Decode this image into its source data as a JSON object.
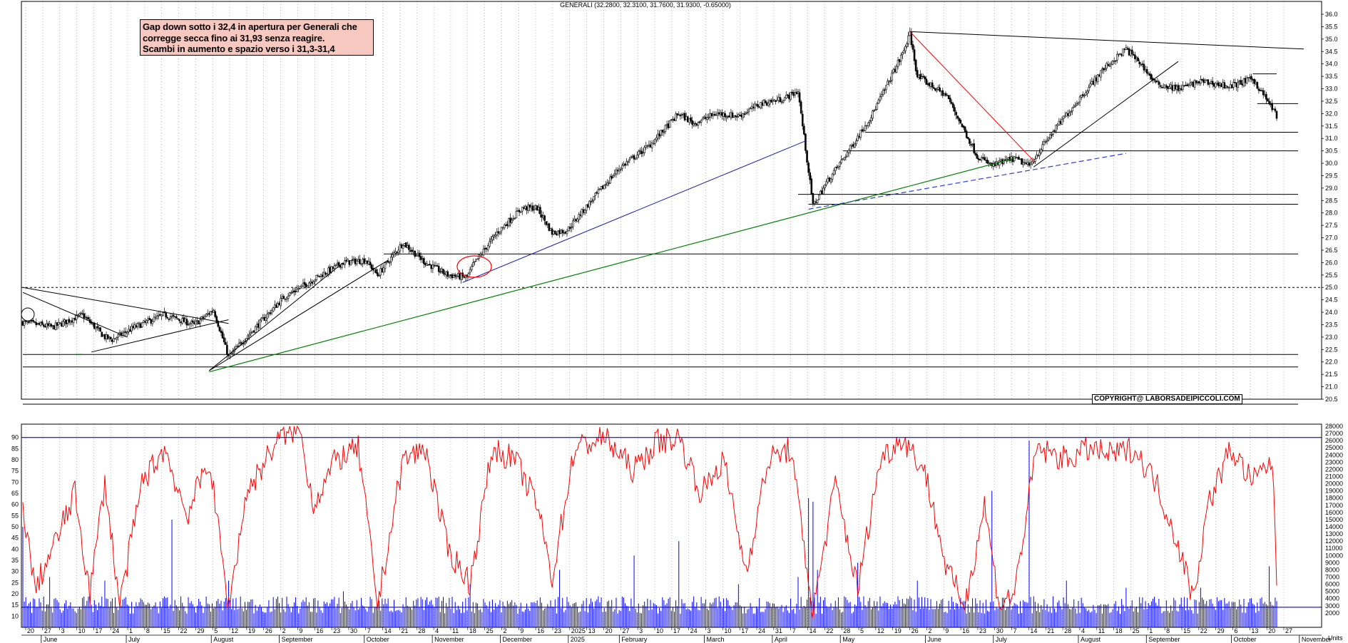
{
  "header": {
    "ticker_line": "GENERALI (32.2800, 32.3100, 31.7600, 31.9300, -0.65000)",
    "note_lines": [
      "Gap down sotto i 32,4 in apertura per Generali che",
      "corregge secca fino ai 31,93 senza reagire.",
      "Scambi in aumento e spazio verso i 31,3-31,4"
    ],
    "copyright": "COPYRIGHT@ LABORSADEIPICCOLI.COM",
    "units_label": "Units"
  },
  "colors": {
    "background": "#ffffff",
    "candle": "#000000",
    "support_line": "#000000",
    "green_trend": "#008000",
    "blue_trend": "#1a1aa8",
    "red_trend": "#ff0000",
    "indicator": "#ff0000",
    "volume": "#0000ff",
    "threshold": "#0000ff",
    "note_box": "#f7c8c0"
  },
  "chart_data": [
    {
      "type": "candlestick",
      "series": [
        {
          "name": "GENERALI"
        }
      ],
      "ylim": [
        20.5,
        36.0
      ],
      "y_tick_labels": [
        "20.5",
        "21.0",
        "21.5",
        "22.0",
        "22.5",
        "23.0",
        "23.5",
        "24.0",
        "24.5",
        "25.0",
        "25.5",
        "26.0",
        "26.5",
        "27.0",
        "27.5",
        "28.0",
        "28.5",
        "29.0",
        "29.5",
        "30.0",
        "30.5",
        "31.0",
        "31.5",
        "32.0",
        "32.5",
        "33.0",
        "33.5",
        "34.0",
        "34.5",
        "35.0",
        "35.5",
        "36.0"
      ],
      "last_bar": {
        "open": 32.28,
        "high": 32.31,
        "low": 31.76,
        "close": 31.93,
        "change": -0.65
      },
      "price_path": [
        {
          "i": 0,
          "p": 23.6
        },
        {
          "i": 20,
          "p": 23.4
        },
        {
          "i": 40,
          "p": 23.9
        },
        {
          "i": 55,
          "p": 23.0
        },
        {
          "i": 60,
          "p": 22.9
        },
        {
          "i": 75,
          "p": 23.4
        },
        {
          "i": 95,
          "p": 23.9
        },
        {
          "i": 115,
          "p": 23.5
        },
        {
          "i": 128,
          "p": 24.1
        },
        {
          "i": 138,
          "p": 22.2
        },
        {
          "i": 150,
          "p": 23.0
        },
        {
          "i": 175,
          "p": 24.6
        },
        {
          "i": 200,
          "p": 25.5
        },
        {
          "i": 215,
          "p": 26.0
        },
        {
          "i": 230,
          "p": 26.1
        },
        {
          "i": 238,
          "p": 25.5
        },
        {
          "i": 255,
          "p": 26.8
        },
        {
          "i": 270,
          "p": 26.0
        },
        {
          "i": 285,
          "p": 25.5
        },
        {
          "i": 298,
          "p": 25.4
        },
        {
          "i": 302,
          "p": 25.9
        },
        {
          "i": 318,
          "p": 27.2
        },
        {
          "i": 335,
          "p": 28.2
        },
        {
          "i": 345,
          "p": 28.2
        },
        {
          "i": 355,
          "p": 27.2
        },
        {
          "i": 365,
          "p": 27.3
        },
        {
          "i": 380,
          "p": 28.4
        },
        {
          "i": 400,
          "p": 29.8
        },
        {
          "i": 420,
          "p": 30.7
        },
        {
          "i": 440,
          "p": 32.0
        },
        {
          "i": 450,
          "p": 31.6
        },
        {
          "i": 465,
          "p": 32.0
        },
        {
          "i": 480,
          "p": 31.9
        },
        {
          "i": 495,
          "p": 32.4
        },
        {
          "i": 510,
          "p": 32.6
        },
        {
          "i": 520,
          "p": 32.9
        },
        {
          "i": 530,
          "p": 28.3
        },
        {
          "i": 540,
          "p": 29.3
        },
        {
          "i": 555,
          "p": 30.6
        },
        {
          "i": 570,
          "p": 32.0
        },
        {
          "i": 590,
          "p": 34.4
        },
        {
          "i": 595,
          "p": 35.2
        },
        {
          "i": 600,
          "p": 33.5
        },
        {
          "i": 620,
          "p": 32.7
        },
        {
          "i": 630,
          "p": 31.5
        },
        {
          "i": 640,
          "p": 30.3
        },
        {
          "i": 650,
          "p": 29.9
        },
        {
          "i": 665,
          "p": 30.2
        },
        {
          "i": 675,
          "p": 29.9
        },
        {
          "i": 690,
          "p": 31.2
        },
        {
          "i": 710,
          "p": 32.7
        },
        {
          "i": 725,
          "p": 33.8
        },
        {
          "i": 740,
          "p": 34.6
        },
        {
          "i": 750,
          "p": 34.0
        },
        {
          "i": 760,
          "p": 33.2
        },
        {
          "i": 775,
          "p": 33.0
        },
        {
          "i": 790,
          "p": 33.3
        },
        {
          "i": 810,
          "p": 33.1
        },
        {
          "i": 825,
          "p": 33.4
        },
        {
          "i": 835,
          "p": 32.5
        },
        {
          "i": 841,
          "p": 31.93
        }
      ]
    },
    {
      "type": "line",
      "series": [
        {
          "name": ""
        }
      ],
      "ylim": [
        5,
        95
      ],
      "y_tick_labels": [
        "10",
        "15",
        "20",
        "25",
        "30",
        "35",
        "40",
        "45",
        "50",
        "55",
        "60",
        "65",
        "70",
        "75",
        "80",
        "85",
        "90"
      ],
      "reference_levels": [
        90,
        14
      ],
      "osc_path": [
        {
          "i": 0,
          "v": 60
        },
        {
          "i": 8,
          "v": 22
        },
        {
          "i": 20,
          "v": 40
        },
        {
          "i": 35,
          "v": 65
        },
        {
          "i": 45,
          "v": 20
        },
        {
          "i": 55,
          "v": 70
        },
        {
          "i": 65,
          "v": 15
        },
        {
          "i": 80,
          "v": 70
        },
        {
          "i": 95,
          "v": 85
        },
        {
          "i": 110,
          "v": 55
        },
        {
          "i": 125,
          "v": 80
        },
        {
          "i": 138,
          "v": 14
        },
        {
          "i": 150,
          "v": 65
        },
        {
          "i": 170,
          "v": 88
        },
        {
          "i": 185,
          "v": 95
        },
        {
          "i": 195,
          "v": 60
        },
        {
          "i": 210,
          "v": 80
        },
        {
          "i": 225,
          "v": 85
        },
        {
          "i": 238,
          "v": 15
        },
        {
          "i": 255,
          "v": 80
        },
        {
          "i": 270,
          "v": 85
        },
        {
          "i": 285,
          "v": 40
        },
        {
          "i": 300,
          "v": 25
        },
        {
          "i": 315,
          "v": 85
        },
        {
          "i": 330,
          "v": 80
        },
        {
          "i": 345,
          "v": 60
        },
        {
          "i": 355,
          "v": 27
        },
        {
          "i": 370,
          "v": 85
        },
        {
          "i": 390,
          "v": 90
        },
        {
          "i": 410,
          "v": 75
        },
        {
          "i": 425,
          "v": 88
        },
        {
          "i": 440,
          "v": 90
        },
        {
          "i": 455,
          "v": 65
        },
        {
          "i": 470,
          "v": 80
        },
        {
          "i": 485,
          "v": 30
        },
        {
          "i": 500,
          "v": 80
        },
        {
          "i": 515,
          "v": 85
        },
        {
          "i": 530,
          "v": 12
        },
        {
          "i": 545,
          "v": 70
        },
        {
          "i": 560,
          "v": 22
        },
        {
          "i": 575,
          "v": 80
        },
        {
          "i": 590,
          "v": 90
        },
        {
          "i": 605,
          "v": 75
        },
        {
          "i": 620,
          "v": 30
        },
        {
          "i": 632,
          "v": 15
        },
        {
          "i": 645,
          "v": 60
        },
        {
          "i": 655,
          "v": 15
        },
        {
          "i": 665,
          "v": 20
        },
        {
          "i": 680,
          "v": 85
        },
        {
          "i": 700,
          "v": 80
        },
        {
          "i": 715,
          "v": 85
        },
        {
          "i": 730,
          "v": 82
        },
        {
          "i": 745,
          "v": 85
        },
        {
          "i": 760,
          "v": 70
        },
        {
          "i": 775,
          "v": 42
        },
        {
          "i": 785,
          "v": 18
        },
        {
          "i": 795,
          "v": 60
        },
        {
          "i": 810,
          "v": 85
        },
        {
          "i": 825,
          "v": 70
        },
        {
          "i": 838,
          "v": 80
        },
        {
          "i": 841,
          "v": 26
        }
      ]
    },
    {
      "type": "bar",
      "series": [
        {
          "name": ""
        }
      ],
      "ylim": [
        0,
        28000
      ],
      "y_tick_labels": [
        "2000",
        "3000",
        "4000",
        "5000",
        "6000",
        "7000",
        "8000",
        "9000",
        "10000",
        "11000",
        "12000",
        "13000",
        "14000",
        "15000",
        "16000",
        "17000",
        "18000",
        "19000",
        "20000",
        "21000",
        "22000",
        "23000",
        "24000",
        "25000",
        "26000",
        "27000",
        "28000"
      ],
      "volume_base": 2700,
      "volume_spikes": [
        {
          "i": 0,
          "v": 14000
        },
        {
          "i": 18,
          "v": 7000
        },
        {
          "i": 55,
          "v": 6500
        },
        {
          "i": 100,
          "v": 15000
        },
        {
          "i": 138,
          "v": 6500
        },
        {
          "i": 215,
          "v": 5000
        },
        {
          "i": 300,
          "v": 6000
        },
        {
          "i": 360,
          "v": 8000
        },
        {
          "i": 410,
          "v": 10000
        },
        {
          "i": 440,
          "v": 12000
        },
        {
          "i": 480,
          "v": 6000
        },
        {
          "i": 520,
          "v": 7000
        },
        {
          "i": 527,
          "v": 18000
        },
        {
          "i": 530,
          "v": 17500
        },
        {
          "i": 533,
          "v": 8000
        },
        {
          "i": 560,
          "v": 9000
        },
        {
          "i": 600,
          "v": 6500
        },
        {
          "i": 650,
          "v": 19000
        },
        {
          "i": 675,
          "v": 26000
        },
        {
          "i": 700,
          "v": 6500
        },
        {
          "i": 740,
          "v": 5500
        },
        {
          "i": 790,
          "v": 5500
        },
        {
          "i": 836,
          "v": 8500
        }
      ]
    },
    {
      "type": "table",
      "x_day_labels": [
        "20",
        "27",
        "3",
        "10",
        "17",
        "24",
        "1",
        "8",
        "15",
        "22",
        "29",
        "5",
        "12",
        "19",
        "26",
        "2",
        "9",
        "16",
        "23",
        "30",
        "7",
        "14",
        "21",
        "28",
        "4",
        "11",
        "18",
        "25",
        "2",
        "9",
        "16",
        "23",
        "2025",
        "13",
        "20",
        "27",
        "3",
        "10",
        "17",
        "24",
        "3",
        "10",
        "17",
        "24",
        "31",
        "7",
        "14",
        "22",
        "28",
        "5",
        "12",
        "19",
        "26",
        "2",
        "9",
        "16",
        "23",
        "30",
        "7",
        "14",
        "21",
        "28",
        "4",
        "11",
        "18",
        "25",
        "1",
        "8",
        "15",
        "22",
        "29",
        "6",
        "13",
        "20",
        "27"
      ],
      "x_month_labels": [
        "June",
        "July",
        "August",
        "September",
        "October",
        "November",
        "December",
        "2025",
        "February",
        "March",
        "April",
        "May",
        "June",
        "July",
        "August",
        "September",
        "October",
        "November"
      ]
    }
  ]
}
